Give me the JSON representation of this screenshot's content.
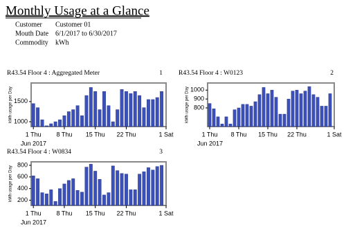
{
  "header": {
    "title": "Monthly Usage at a Glance",
    "rows": [
      [
        "Customer",
        "Customer 01"
      ],
      [
        "Mouth Date",
        "6/1/2017 to 6/30/2017"
      ],
      [
        "Commodity",
        "kWh"
      ]
    ]
  },
  "chart_data": [
    {
      "type": "bar",
      "title": "R43.54 Floor 4 : Aggregated Meter",
      "panel_number": "1",
      "y_label": "kWh usage per Day",
      "x_sublabel": "Jun 2017",
      "color": "#3b50b8",
      "x": [
        1,
        2,
        3,
        4,
        5,
        6,
        7,
        8,
        9,
        10,
        11,
        12,
        13,
        14,
        15,
        16,
        17,
        18,
        19,
        20,
        21,
        22,
        23,
        24,
        25,
        26,
        27,
        28,
        29,
        30
      ],
      "values": [
        1450,
        1350,
        1050,
        900,
        950,
        1000,
        1050,
        1150,
        1250,
        1300,
        1400,
        1150,
        1650,
        1850,
        1750,
        1300,
        1750,
        1400,
        1000,
        1300,
        1800,
        1750,
        1700,
        1750,
        1650,
        1350,
        1550,
        1550,
        1600,
        1750
      ],
      "xlim": [
        0.5,
        31
      ],
      "xticks": [
        {
          "value": 1,
          "label": "1 Thu"
        },
        {
          "value": 8,
          "label": "8 Thu"
        },
        {
          "value": 15,
          "label": "15 Thu"
        },
        {
          "value": 22,
          "label": "22 Thu"
        },
        {
          "value": 31,
          "label": "1 Sat"
        }
      ],
      "ylim": [
        880,
        1960
      ],
      "yticks": [
        1000,
        1500
      ]
    },
    {
      "type": "bar",
      "title": "R43.54 Floor 4 : W0123",
      "panel_number": "2",
      "y_label": "kWh usage per Day",
      "x_sublabel": "Jun 2017",
      "color": "#3b50b8",
      "x": [
        1,
        2,
        3,
        4,
        5,
        6,
        7,
        8,
        9,
        10,
        11,
        12,
        13,
        14,
        15,
        16,
        17,
        18,
        19,
        20,
        21,
        22,
        23,
        24,
        25,
        26,
        27,
        28,
        29,
        30
      ],
      "values": [
        850,
        790,
        700,
        620,
        700,
        620,
        780,
        800,
        840,
        840,
        820,
        870,
        950,
        1030,
        960,
        1000,
        920,
        730,
        730,
        900,
        990,
        1000,
        960,
        990,
        1040,
        950,
        920,
        820,
        820,
        960
      ],
      "xlim": [
        0.5,
        31
      ],
      "xticks": [
        {
          "value": 1,
          "label": "1 Thu"
        },
        {
          "value": 8,
          "label": "8 Thu"
        },
        {
          "value": 15,
          "label": "15 Thu"
        },
        {
          "value": 22,
          "label": "22 Thu"
        },
        {
          "value": 31,
          "label": "1 Sat"
        }
      ],
      "ylim": [
        590,
        1080
      ],
      "yticks": [
        800,
        900,
        1000
      ]
    },
    {
      "type": "bar",
      "title": "R43.54 Floor 4 : W0834",
      "panel_number": "3",
      "y_label": "kWh usage per Day",
      "x_sublabel": "Jun 2017",
      "color": "#3b50b8",
      "x": [
        1,
        2,
        3,
        4,
        5,
        6,
        7,
        8,
        9,
        10,
        11,
        12,
        13,
        14,
        15,
        16,
        17,
        18,
        19,
        20,
        21,
        22,
        23,
        24,
        25,
        26,
        27,
        28,
        29,
        30
      ],
      "values": [
        620,
        570,
        330,
        310,
        380,
        180,
        400,
        480,
        540,
        570,
        370,
        340,
        770,
        820,
        700,
        560,
        290,
        330,
        790,
        710,
        660,
        650,
        380,
        380,
        650,
        690,
        760,
        720,
        780,
        800
      ],
      "xlim": [
        0.5,
        31
      ],
      "xticks": [
        {
          "value": 1,
          "label": "1 Thu"
        },
        {
          "value": 8,
          "label": "8 Thu"
        },
        {
          "value": 15,
          "label": "15 Thu"
        },
        {
          "value": 22,
          "label": "22 Thu"
        },
        {
          "value": 31,
          "label": "1 Sat"
        }
      ],
      "ylim": [
        110,
        860
      ],
      "yticks": [
        200,
        400,
        600,
        800
      ]
    }
  ]
}
